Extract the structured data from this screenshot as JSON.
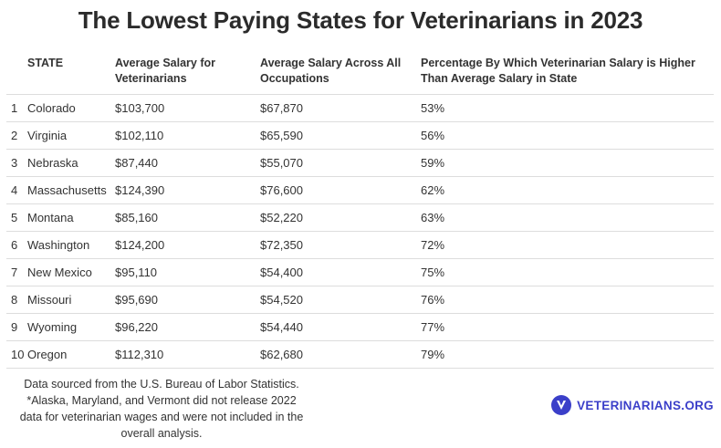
{
  "title": "The Lowest Paying States for Veterinarians in 2023",
  "chart_data": {
    "type": "table",
    "title": "The Lowest Paying States for Veterinarians in 2023",
    "columns": [
      "",
      "STATE",
      "Average Salary for Veterinarians",
      "Average Salary Across All Occupations",
      "Percentage By Which Veterinarian Salary is Higher Than Average Salary in State"
    ],
    "rows": [
      [
        "1",
        "Colorado",
        "$103,700",
        "$67,870",
        "53%"
      ],
      [
        "2",
        "Virginia",
        "$102,110",
        "$65,590",
        "56%"
      ],
      [
        "3",
        "Nebraska",
        "$87,440",
        "$55,070",
        "59%"
      ],
      [
        "4",
        "Massachusetts",
        "$124,390",
        "$76,600",
        "62%"
      ],
      [
        "5",
        "Montana",
        "$85,160",
        "$52,220",
        "63%"
      ],
      [
        "6",
        "Washington",
        "$124,200",
        "$72,350",
        "72%"
      ],
      [
        "7",
        "New Mexico",
        "$95,110",
        "$54,400",
        "75%"
      ],
      [
        "8",
        "Missouri",
        "$95,690",
        "$54,520",
        "76%"
      ],
      [
        "9",
        "Wyoming",
        "$96,220",
        "$54,440",
        "77%"
      ],
      [
        "10",
        "Oregon",
        "$112,310",
        "$62,680",
        "79%"
      ]
    ]
  },
  "footnote": {
    "line1": "Data sourced from the U.S. Bureau of Labor Statistics.",
    "line2": "*Alaska, Maryland, and Vermont did not release 2022",
    "line3": "data for veterinarian wages and were not included in the",
    "line4": "overall analysis."
  },
  "brand": {
    "name": "VETERINARIANS.ORG",
    "icon": "v-logo-icon",
    "color": "#3b3fc9"
  }
}
